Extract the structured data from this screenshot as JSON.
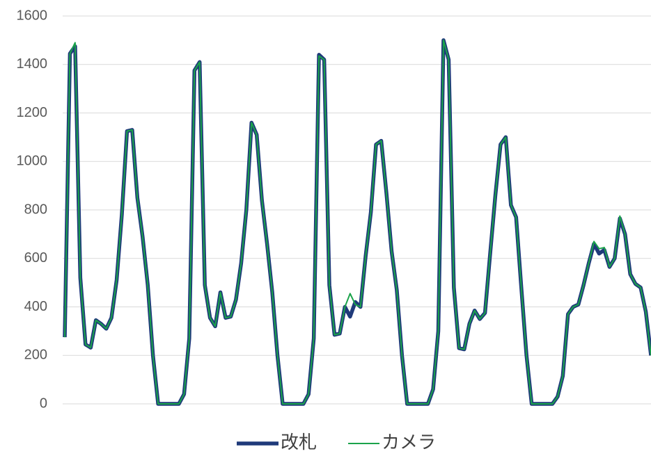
{
  "chart_data": {
    "type": "line",
    "categories": [
      null,
      null,
      null,
      null,
      null,
      null,
      null,
      null,
      null,
      null,
      null,
      null,
      null,
      null,
      null,
      null,
      null,
      null,
      null,
      null,
      null,
      null,
      null,
      null,
      null,
      null,
      null,
      null,
      null,
      null,
      null,
      null,
      null,
      null,
      null,
      null,
      null,
      null,
      null,
      null,
      null,
      null,
      null,
      null,
      null,
      null,
      null,
      null,
      null,
      null,
      null,
      null,
      null,
      null,
      null,
      null,
      null,
      null,
      null,
      null,
      null,
      null,
      null,
      null,
      null,
      null,
      null,
      null,
      null,
      null,
      null,
      null,
      null,
      null,
      null,
      null,
      null,
      null,
      null,
      null,
      null,
      null,
      null,
      null,
      null,
      null,
      null,
      null,
      null,
      null,
      null,
      null,
      null,
      null,
      null,
      null,
      null,
      null,
      null,
      null,
      null,
      null,
      null,
      null,
      null,
      null,
      null,
      null,
      null,
      null,
      null,
      null,
      null,
      null
    ],
    "series": [
      {
        "name": "改札",
        "color": "#1f3a7a",
        "values": [
          275,
          1445,
          1475,
          520,
          245,
          232,
          345,
          330,
          310,
          355,
          510,
          780,
          1125,
          1130,
          850,
          690,
          490,
          200,
          0,
          0,
          0,
          0,
          0,
          40,
          270,
          1375,
          1410,
          490,
          355,
          320,
          460,
          355,
          360,
          430,
          580,
          800,
          1160,
          1110,
          840,
          660,
          460,
          200,
          0,
          0,
          0,
          0,
          0,
          40,
          270,
          1440,
          1420,
          490,
          285,
          290,
          400,
          360,
          420,
          400,
          610,
          790,
          1070,
          1085,
          870,
          630,
          470,
          200,
          0,
          0,
          0,
          0,
          0,
          60,
          300,
          1500,
          1420,
          480,
          230,
          225,
          330,
          385,
          350,
          375,
          620,
          860,
          1070,
          1100,
          820,
          770,
          480,
          200,
          0,
          0,
          0,
          0,
          0,
          30,
          115,
          370,
          400,
          410,
          490,
          580,
          660,
          620,
          635,
          565,
          600,
          765,
          700,
          535,
          495,
          480,
          380,
          200
        ]
      },
      {
        "name": "カメラ",
        "color": "#1aa34a",
        "values": [
          275,
          1445,
          1490,
          520,
          245,
          232,
          345,
          330,
          310,
          355,
          510,
          780,
          1125,
          1130,
          850,
          690,
          490,
          200,
          0,
          0,
          0,
          0,
          0,
          40,
          270,
          1375,
          1410,
          490,
          355,
          320,
          460,
          355,
          360,
          430,
          580,
          800,
          1160,
          1110,
          840,
          660,
          460,
          200,
          0,
          0,
          0,
          0,
          0,
          40,
          270,
          1435,
          1420,
          490,
          285,
          290,
          400,
          455,
          410,
          400,
          610,
          790,
          1070,
          1085,
          870,
          630,
          470,
          200,
          0,
          0,
          0,
          0,
          0,
          60,
          300,
          1500,
          1420,
          480,
          230,
          225,
          330,
          385,
          350,
          375,
          620,
          860,
          1070,
          1100,
          820,
          770,
          480,
          200,
          0,
          0,
          0,
          0,
          0,
          30,
          115,
          370,
          400,
          410,
          490,
          580,
          670,
          640,
          645,
          565,
          600,
          775,
          700,
          535,
          495,
          480,
          380,
          200
        ]
      }
    ],
    "ylim": [
      0,
      1600
    ],
    "yticks": [
      0,
      200,
      400,
      600,
      800,
      1000,
      1200,
      1400,
      1600
    ],
    "grid": true
  }
}
